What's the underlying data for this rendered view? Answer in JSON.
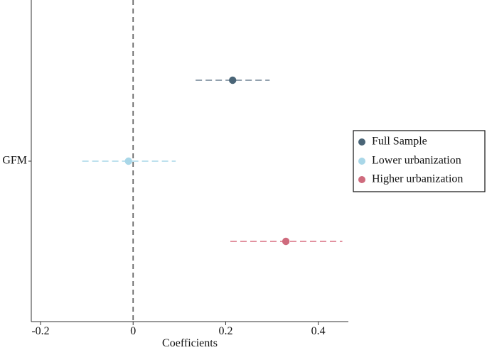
{
  "chart_data": {
    "type": "scatter",
    "subtype": "coefficient-plot-with-confidence-intervals",
    "xlabel": "Coefficients",
    "ylabel": "",
    "xlim": [
      -0.22,
      0.465
    ],
    "x_ticks": [
      -0.2,
      0,
      0.2,
      0.4
    ],
    "x_tick_labels": [
      "-0.2",
      "0",
      "0.2",
      "0.4"
    ],
    "categories": [
      "GFM"
    ],
    "reference_line": {
      "x": 0,
      "style": "dashed",
      "color": "#666666"
    },
    "grid": false,
    "legend": {
      "position": "right"
    },
    "series": [
      {
        "name": "Full Sample",
        "color": "#4a6577",
        "ci_color": "#6f8294",
        "estimate": 0.215,
        "ci_low": 0.135,
        "ci_high": 0.295
      },
      {
        "name": "Lower urbanization",
        "color": "#a9d7e8",
        "ci_color": "#a9d7e8",
        "estimate": -0.01,
        "ci_low": -0.11,
        "ci_high": 0.092
      },
      {
        "name": "Higher urbanization",
        "color": "#cf6b7d",
        "ci_color": "#d96f80",
        "estimate": 0.33,
        "ci_low": 0.21,
        "ci_high": 0.452
      }
    ]
  }
}
